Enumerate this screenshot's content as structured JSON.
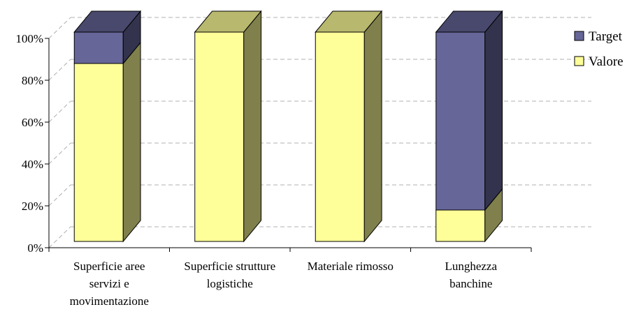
{
  "chart_data": {
    "type": "bar",
    "stacked": true,
    "normalized": true,
    "three_d": true,
    "categories": [
      [
        "Superficie aree",
        "servizi e",
        "movimentazione"
      ],
      [
        "Superficie strutture",
        "logistiche"
      ],
      [
        "Materiale rimosso"
      ],
      [
        "Lunghezza",
        "banchine"
      ]
    ],
    "series": [
      {
        "name": "Valore",
        "color": "#ffff99",
        "values": [
          85,
          100,
          100,
          15
        ]
      },
      {
        "name": "Target",
        "color": "#666699",
        "values": [
          15,
          0,
          0,
          85
        ]
      }
    ],
    "y_ticks": [
      "0%",
      "20%",
      "40%",
      "60%",
      "80%",
      "100%"
    ],
    "ylim": [
      0,
      100
    ],
    "grid": true,
    "legend": {
      "position": "right",
      "order": [
        "Target",
        "Valore"
      ]
    }
  }
}
